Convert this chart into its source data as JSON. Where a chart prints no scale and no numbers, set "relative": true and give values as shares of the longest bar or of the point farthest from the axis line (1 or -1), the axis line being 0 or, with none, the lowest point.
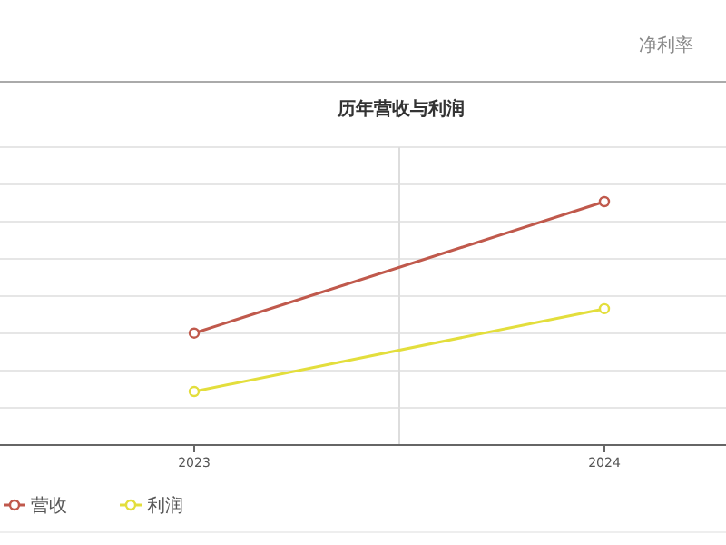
{
  "chart_data": {
    "type": "line",
    "title": "历年营收与利润",
    "categories": [
      "2023",
      "2024"
    ],
    "relative": true,
    "series": [
      {
        "name": "营收",
        "color": "#c0594c",
        "values": [
          0.46,
          1
        ]
      },
      {
        "name": "利润",
        "color": "#e3de3c",
        "values": [
          0.22,
          0.56
        ]
      }
    ],
    "marker": "circle",
    "grid": true,
    "legend": "bottom left",
    "annotations": [
      "净利率"
    ]
  }
}
